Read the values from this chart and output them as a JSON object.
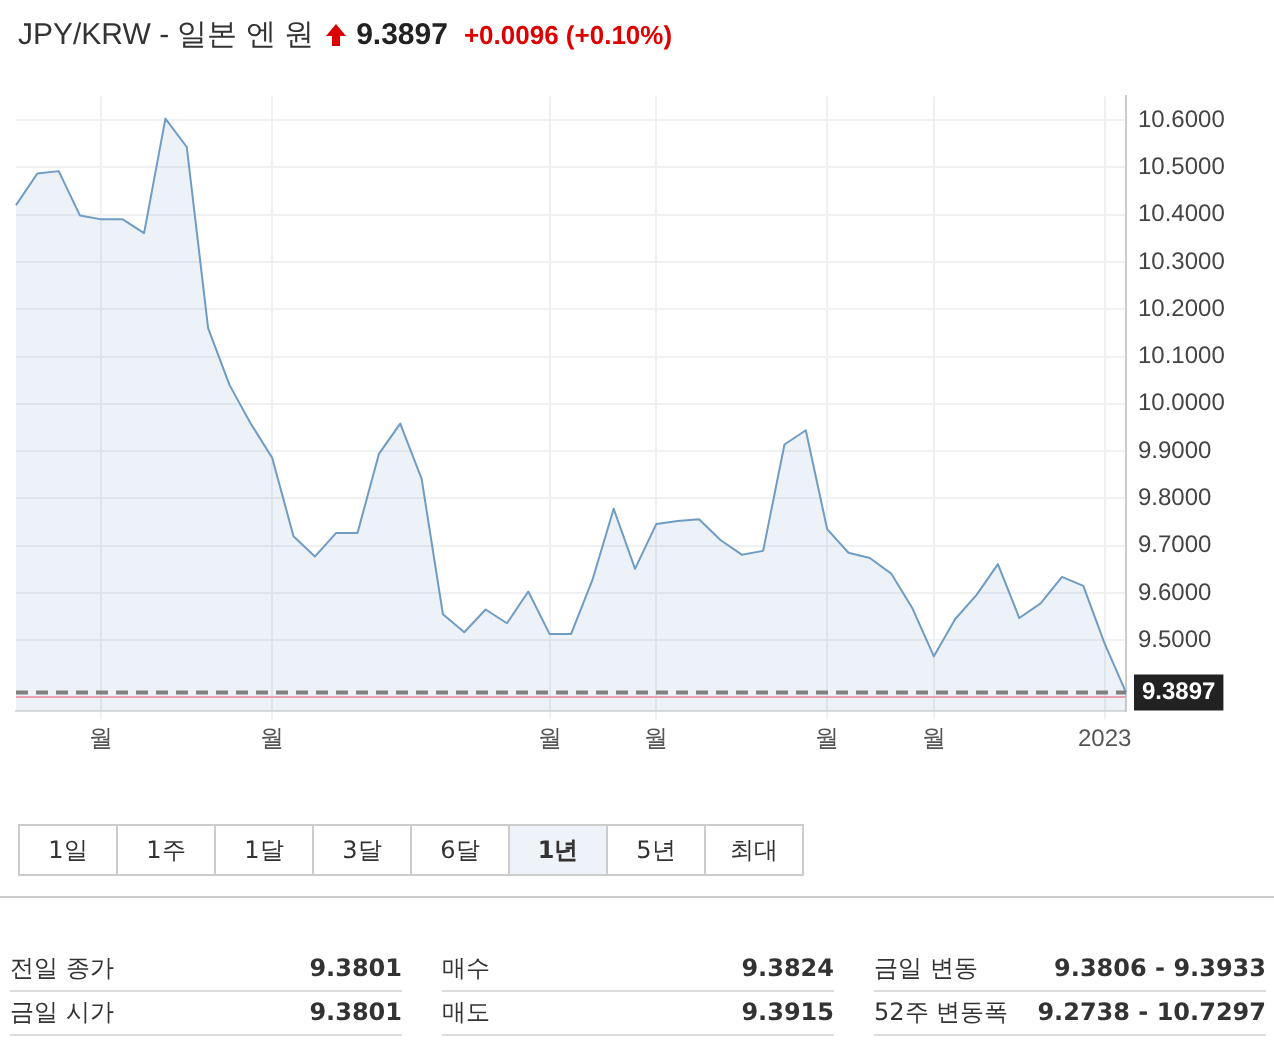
{
  "chart_data": {
    "type": "area",
    "title": "JPY/KRW - 일본 엔 원",
    "subtitle": "9.3897 +0.0096 (+0.10%)",
    "categories": [
      null,
      null,
      null,
      null,
      "월",
      null,
      null,
      null,
      null,
      null,
      null,
      null,
      "월",
      null,
      null,
      null,
      null,
      null,
      null,
      null,
      null,
      null,
      null,
      null,
      null,
      "월",
      null,
      null,
      null,
      null,
      "월",
      null,
      null,
      null,
      null,
      null,
      null,
      null,
      "월",
      null,
      null,
      null,
      null,
      "월",
      null,
      null,
      null,
      null,
      null,
      null,
      null,
      "2023",
      null
    ],
    "series": [
      {
        "color": "#6f9cc4",
        "values": [
          10.42,
          10.487,
          10.492,
          10.398,
          10.39,
          10.39,
          10.361,
          10.603,
          10.543,
          10.16,
          10.04,
          9.958,
          9.886,
          9.72,
          9.677,
          9.727,
          9.727,
          9.894,
          9.958,
          9.842,
          9.555,
          9.517,
          9.565,
          9.536,
          9.603,
          9.513,
          9.513,
          9.627,
          9.778,
          9.651,
          9.746,
          9.752,
          9.756,
          9.712,
          9.681,
          9.689,
          9.914,
          9.944,
          9.735,
          9.685,
          9.674,
          9.641,
          9.567,
          9.466,
          9.545,
          9.596,
          9.661,
          9.547,
          9.578,
          9.634,
          9.615,
          9.493,
          9.3897
        ]
      }
    ],
    "ylim": [
      9.35,
      10.65
    ],
    "yticks": [
      {
        "value": 9.5,
        "label": "9.5000"
      },
      {
        "value": 9.6,
        "label": "9.6000"
      },
      {
        "value": 9.7,
        "label": "9.7000"
      },
      {
        "value": 9.8,
        "label": "9.8000"
      },
      {
        "value": 9.9,
        "label": "9.9000"
      },
      {
        "value": 10,
        "label": "10.0000"
      },
      {
        "value": 10.1,
        "label": "10.1000"
      },
      {
        "value": 10.2,
        "label": "10.2000"
      },
      {
        "value": 10.3,
        "label": "10.3000"
      },
      {
        "value": 10.4,
        "label": "10.4000"
      },
      {
        "value": 10.5,
        "label": "10.5000"
      },
      {
        "value": 10.6,
        "label": "10.6000"
      }
    ],
    "grid": true,
    "ref_lines": [
      {
        "axis": "y",
        "value": 9.3897,
        "label": "9.3897",
        "color": "#808080",
        "line_style": "dashed"
      },
      {
        "axis": "y",
        "value": 9.3801,
        "label": null,
        "color": "#e8a0b4",
        "line_style": "solid"
      }
    ],
    "annotations": [
      "1일",
      "1주",
      "1달",
      "3달",
      "6달",
      "1년",
      "5년",
      "최대",
      "전일 종가",
      "9.3801",
      "매수",
      "9.3824",
      "금일 변동",
      "9.3806 - 9.3933",
      "금일 시가",
      "9.3801",
      "매도",
      "9.3915",
      "52주 변동폭",
      "9.2738 - 10.7297"
    ]
  }
}
